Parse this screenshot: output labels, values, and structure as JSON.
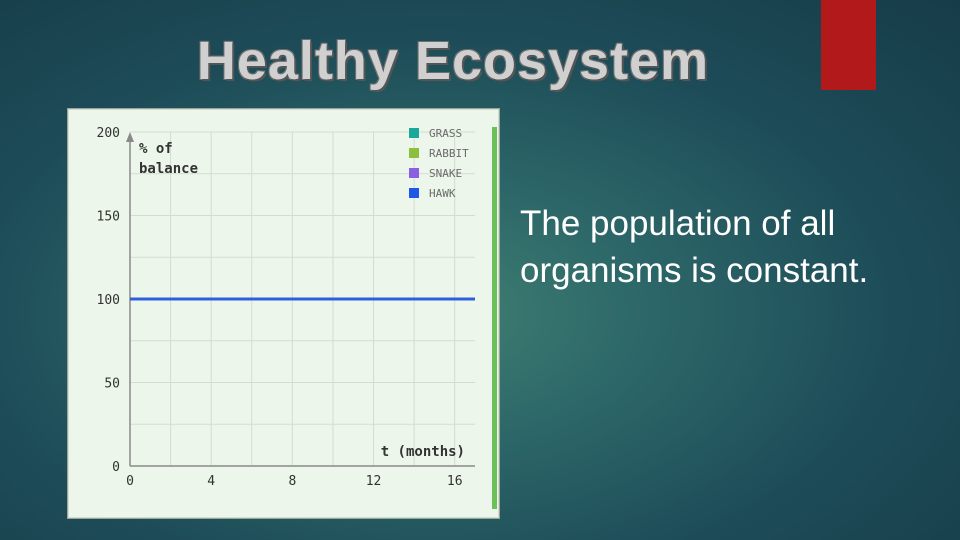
{
  "slide": {
    "title": "Healthy Ecosystem",
    "body_lines": [
      "The population of all",
      "organisms is constant."
    ],
    "colors": {
      "accent_bar": "#b2191a",
      "text": "#ffffff",
      "title": "#d0d0d0"
    }
  },
  "chart_data": {
    "type": "line",
    "title": "",
    "ylabel_lines": [
      "% of",
      "balance"
    ],
    "xlabel": "t (months)",
    "xlim": [
      0,
      17
    ],
    "ylim": [
      0,
      200
    ],
    "x_ticks": [
      0,
      4,
      8,
      12,
      16
    ],
    "y_ticks": [
      0,
      50,
      100,
      150,
      200
    ],
    "grid": true,
    "legend_position": "top-right",
    "series": [
      {
        "name": "GRASS",
        "color": "#1aa89a",
        "x": [
          0,
          17
        ],
        "y": [
          100,
          100
        ]
      },
      {
        "name": "RABBIT",
        "color": "#8cc03c",
        "x": [
          0,
          17
        ],
        "y": [
          100,
          100
        ]
      },
      {
        "name": "SNAKE",
        "color": "#8a60e0",
        "x": [
          0,
          17
        ],
        "y": [
          100,
          100
        ]
      },
      {
        "name": "HAWK",
        "color": "#1f57e6",
        "x": [
          0,
          17
        ],
        "y": [
          100,
          100
        ]
      }
    ]
  }
}
